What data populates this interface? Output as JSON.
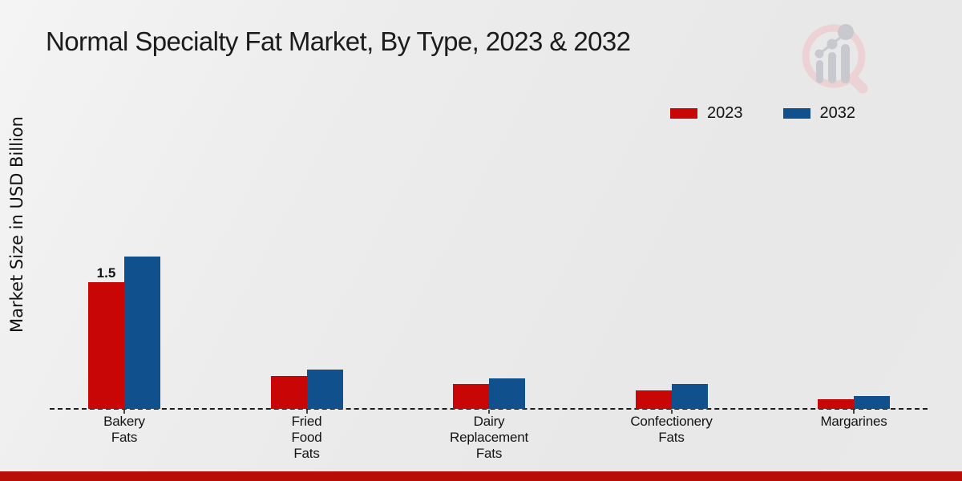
{
  "title": "Normal Specialty Fat Market, By Type, 2023 & 2032",
  "y_axis_label": "Market Size in USD Billion",
  "legend": {
    "items": [
      {
        "label": "2023",
        "color": "#c90606"
      },
      {
        "label": "2032",
        "color": "#10508c"
      }
    ]
  },
  "watermark": {
    "name": "magnifier-barchart-logo"
  },
  "footer": {
    "bar_color": "#b70d06"
  },
  "chart_data": {
    "type": "bar",
    "title": "Normal Specialty Fat Market, By Type, 2023 & 2032",
    "categories": [
      "Bakery Fats",
      "Fried Food Fats",
      "Dairy Replacement Fats",
      "Confectionery Fats",
      "Margarines"
    ],
    "category_label_lines": [
      [
        "Bakery",
        "Fats"
      ],
      [
        "Fried",
        "Food",
        "Fats"
      ],
      [
        "Dairy",
        "Replacement",
        "Fats"
      ],
      [
        "Confectionery",
        "Fats"
      ],
      [
        "Margarines"
      ]
    ],
    "series": [
      {
        "name": "2023",
        "color": "#c90606",
        "values": [
          1.5,
          0.39,
          0.29,
          0.22,
          0.11
        ]
      },
      {
        "name": "2032",
        "color": "#10508c",
        "values": [
          1.8,
          0.47,
          0.36,
          0.29,
          0.15
        ]
      }
    ],
    "data_labels": [
      {
        "series_index": 0,
        "category_index": 0,
        "text": "1.5"
      }
    ],
    "xlabel": "",
    "ylabel": "Market Size in USD Billion",
    "ylim": [
      0,
      2
    ],
    "grid": false,
    "legend_position": "top-right",
    "baseline_style": "dashed"
  }
}
